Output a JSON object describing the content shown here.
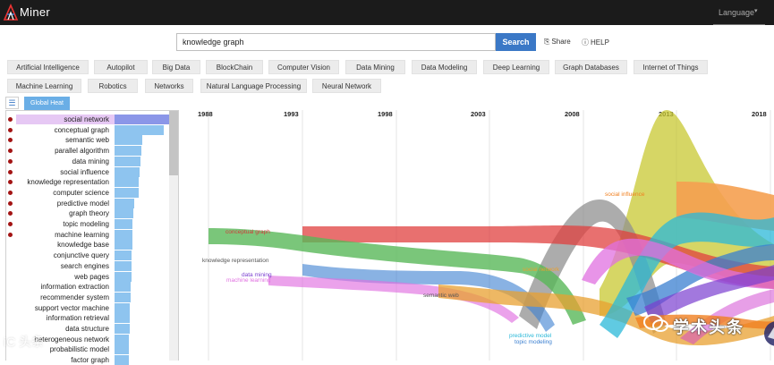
{
  "header": {
    "brand": "Miner",
    "language_label": "Language"
  },
  "search": {
    "value": "knowledge graph",
    "button_label": "Search",
    "share_label": "Share",
    "help_label": "HELP"
  },
  "tags_row1": [
    "Artificial Intelligence",
    "Autopilot",
    "Big Data",
    "BlockChain",
    "Computer Vision",
    "Data Mining",
    "Data Modeling",
    "Deep Learning",
    "Graph Databases",
    "Internet of Things"
  ],
  "tags_row2": [
    "Machine Learning",
    "Robotics",
    "Networks",
    "Natural Language Processing",
    "Neural Network"
  ],
  "panel": {
    "tab_label": "Global Heat",
    "topics": [
      {
        "label": "social network",
        "heat": 1.0,
        "dot": true,
        "selected": true
      },
      {
        "label": "conceptual graph",
        "heat": 0.89,
        "dot": true
      },
      {
        "label": "semantic web",
        "heat": 0.5,
        "dot": true
      },
      {
        "label": "parallel algorithm",
        "heat": 0.48,
        "dot": true
      },
      {
        "label": "data mining",
        "heat": 0.47,
        "dot": true
      },
      {
        "label": "social influence",
        "heat": 0.45,
        "dot": true
      },
      {
        "label": "knowledge representation",
        "heat": 0.44,
        "dot": true
      },
      {
        "label": "computer science",
        "heat": 0.43,
        "dot": true
      },
      {
        "label": "predictive model",
        "heat": 0.36,
        "dot": true
      },
      {
        "label": "graph theory",
        "heat": 0.34,
        "dot": true
      },
      {
        "label": "topic modeling",
        "heat": 0.33,
        "dot": true
      },
      {
        "label": "machine learning",
        "heat": 0.32,
        "dot": true
      },
      {
        "label": "knowledge base",
        "heat": 0.32,
        "dot": false
      },
      {
        "label": "conjunctive query",
        "heat": 0.31,
        "dot": false
      },
      {
        "label": "search engines",
        "heat": 0.3,
        "dot": false
      },
      {
        "label": "web pages",
        "heat": 0.3,
        "dot": false
      },
      {
        "label": "information extraction",
        "heat": 0.29,
        "dot": false
      },
      {
        "label": "recommender system",
        "heat": 0.29,
        "dot": false
      },
      {
        "label": "support vector machine",
        "heat": 0.28,
        "dot": false
      },
      {
        "label": "information retrieval",
        "heat": 0.27,
        "dot": false
      },
      {
        "label": "data structure",
        "heat": 0.27,
        "dot": false
      },
      {
        "label": "heterogeneous network",
        "heat": 0.26,
        "dot": false
      },
      {
        "label": "probabilistic model",
        "heat": 0.26,
        "dot": false
      },
      {
        "label": "factor graph",
        "heat": 0.25,
        "dot": false
      }
    ]
  },
  "chart_data": {
    "type": "area",
    "x": [
      "1988",
      "1993",
      "1998",
      "2003",
      "2008",
      "2013",
      "2018"
    ],
    "streams": [
      {
        "name": "conceptual graph",
        "color": "#e0403f"
      },
      {
        "name": "knowledge representation",
        "color": "#808080"
      },
      {
        "name": "data mining",
        "color": "#7a3fd0"
      },
      {
        "name": "machine learning",
        "color": "#e070e0"
      },
      {
        "name": "social network",
        "color": "#e8a030"
      },
      {
        "name": "semantic web",
        "color": "#606060"
      },
      {
        "name": "predictive model",
        "color": "#2bb8d8"
      },
      {
        "name": "topic modeling",
        "color": "#3a7fd0"
      },
      {
        "name": "social influence",
        "color": "#f08020"
      }
    ]
  },
  "watermarks": {
    "left": "iC 头条",
    "right": "学术头条"
  }
}
